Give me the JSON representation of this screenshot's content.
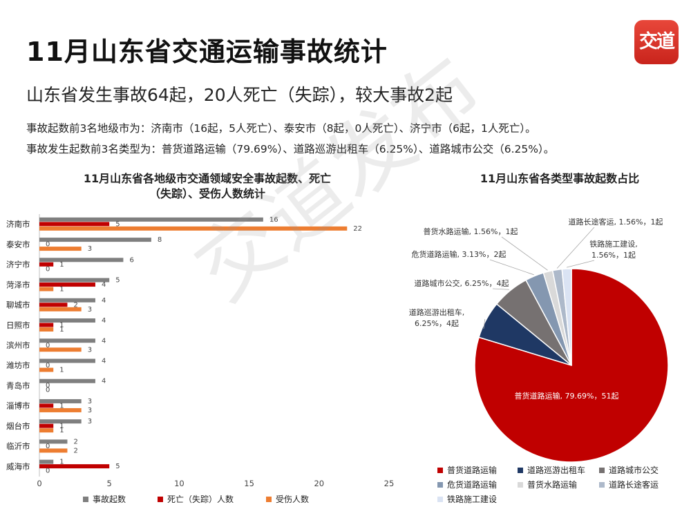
{
  "header": {
    "title": "11月山东省交通运输事故统计",
    "logo_text": "交道",
    "subtitle": "山东省发生事故64起，20人死亡（失踪），较大事故2起",
    "line1": "事故起数前3名地级市为：济南市（16起，5人死亡）、泰安市（8起，0人死亡）、济宁市（6起，1人死亡）。",
    "line2": "事故发生起数前3名类型为：普货道路运输（79.69%）、道路巡游出租车（6.25%）、道路城市公交（6.25%）。"
  },
  "watermark": "交道发布",
  "colors": {
    "accent": "#c0262c",
    "gray": "#7f7f7f",
    "orange": "#ed7d31"
  },
  "chart_data": [
    {
      "type": "bar",
      "orientation": "horizontal",
      "title_line1": "11月山东省各地级市交通领域安全事故起数、死亡",
      "title_line2": "（失踪）、受伤人数统计",
      "categories": [
        "济南市",
        "泰安市",
        "济宁市",
        "菏泽市",
        "聊城市",
        "日照市",
        "滨州市",
        "潍坊市",
        "青岛市",
        "淄博市",
        "烟台市",
        "临沂市",
        "威海市"
      ],
      "series": [
        {
          "name": "事故起数",
          "color": "#7f7f7f",
          "values": [
            16,
            8,
            6,
            5,
            4,
            4,
            4,
            4,
            4,
            3,
            3,
            2,
            1
          ]
        },
        {
          "name": "死亡（失踪）人数",
          "color": "#c00000",
          "values": [
            5,
            0,
            1,
            4,
            2,
            1,
            0,
            0,
            0,
            1,
            1,
            0,
            5
          ]
        },
        {
          "name": "受伤人数",
          "color": "#ed7d31",
          "values": [
            22,
            3,
            0,
            1,
            3,
            1,
            3,
            1,
            0,
            3,
            1,
            2,
            0
          ]
        }
      ],
      "xlim": [
        0,
        25
      ],
      "xticks": [
        0,
        5,
        10,
        15,
        20,
        25
      ],
      "legend_position": "bottom",
      "grid": false
    },
    {
      "type": "pie",
      "title": "11月山东省各类型事故起数占比",
      "slices": [
        {
          "name": "普货道路运输",
          "value": 51,
          "percent": "79.69%",
          "label": "普货道路运输, 79.69%，51起",
          "color": "#c00000"
        },
        {
          "name": "道路巡游出租车",
          "value": 4,
          "percent": "6.25%",
          "label": "道路巡游出租车,\n6.25%，4起",
          "color": "#1f3864"
        },
        {
          "name": "道路城市公交",
          "value": 4,
          "percent": "6.25%",
          "label": "道路城市公交, 6.25%，4起",
          "color": "#767171"
        },
        {
          "name": "危货道路运输",
          "value": 2,
          "percent": "3.13%",
          "label": "危货道路运输, 3.13%，2起",
          "color": "#8497b0"
        },
        {
          "name": "普货水路运输",
          "value": 1,
          "percent": "1.56%",
          "label": "普货水路运输, 1.56%，1起",
          "color": "#d9d9d9"
        },
        {
          "name": "道路长途客运",
          "value": 1,
          "percent": "1.56%",
          "label": "道路长途客运, 1.56%，1起",
          "color": "#adb9ca"
        },
        {
          "name": "铁路施工建设",
          "value": 1,
          "percent": "1.56%",
          "label": "铁路施工建设,\n1.56%，1起",
          "color": "#dae3f3"
        }
      ],
      "legend_position": "bottom"
    }
  ]
}
